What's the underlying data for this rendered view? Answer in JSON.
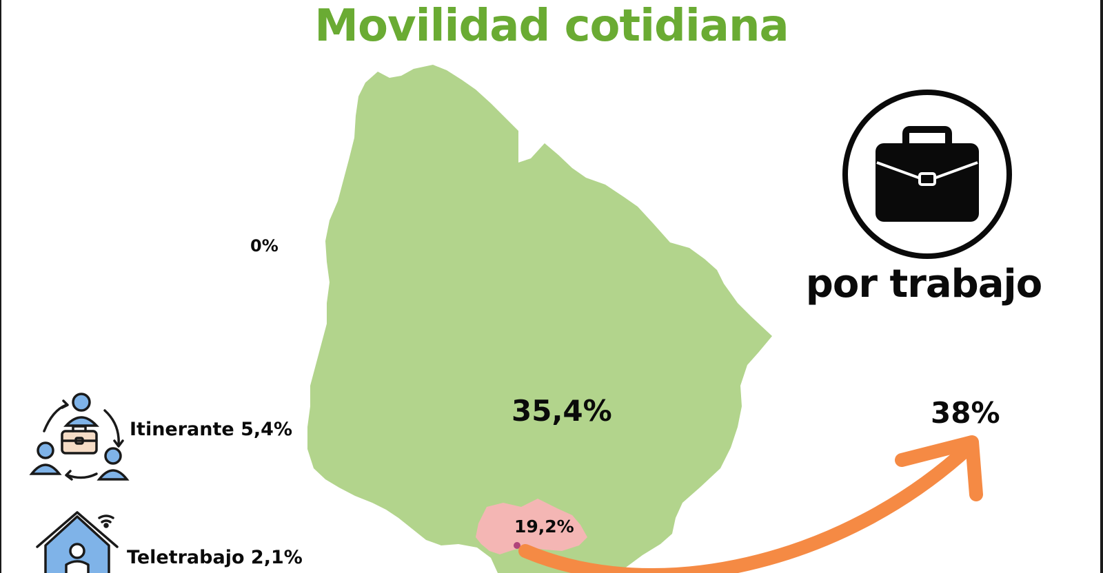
{
  "title": "Movilidad cotidiana",
  "colors": {
    "title": "#6aab33",
    "map_fill": "#b2d48c",
    "highlight_fill": "#f4b6b4",
    "dot": "#b0447a",
    "arrow": "#f58a44",
    "icon_blue": "#7fb3e8",
    "icon_peach": "#f5dcc6"
  },
  "map_labels": {
    "zero": "0%",
    "main": "35,4%",
    "montevideo": "19,2%"
  },
  "side_items": [
    {
      "icon": "itinerant-worker-icon",
      "label": "Itinerante 5,4%"
    },
    {
      "icon": "remote-work-house-icon",
      "label": "Teletrabajo 2,1%"
    }
  ],
  "category": {
    "icon": "briefcase-icon",
    "caption": "por trabajo",
    "value": "38%"
  }
}
